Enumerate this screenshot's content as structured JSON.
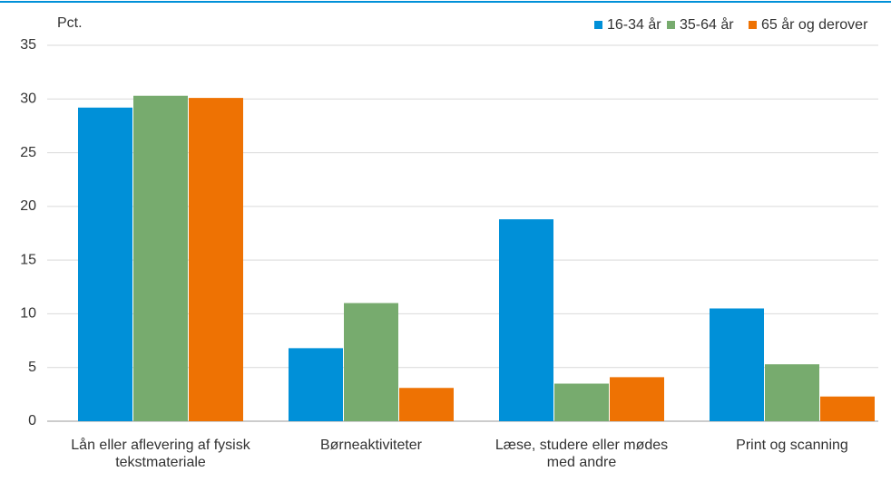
{
  "chart_data": {
    "type": "bar",
    "y_label": "Pct.",
    "categories": [
      "Lån eller aflevering af fysisk tekstmateriale",
      "Børneaktiviteter",
      "Læse, studere eller mødes med andre",
      "Print og scanning"
    ],
    "series": [
      {
        "name": "16-34 år",
        "color": "#0090d8",
        "values": [
          29.2,
          6.8,
          18.8,
          10.5
        ]
      },
      {
        "name": "35-64 år",
        "color": "#77ab6e",
        "values": [
          30.3,
          11.0,
          3.5,
          5.3
        ]
      },
      {
        "name": "65 år og derover",
        "color": "#ee7203",
        "values": [
          30.1,
          3.1,
          4.1,
          2.3
        ]
      }
    ],
    "ylim": [
      0,
      35
    ],
    "yticks": [
      0,
      5,
      10,
      15,
      20,
      25,
      30,
      35
    ],
    "grid": true,
    "legend": "top-right"
  }
}
